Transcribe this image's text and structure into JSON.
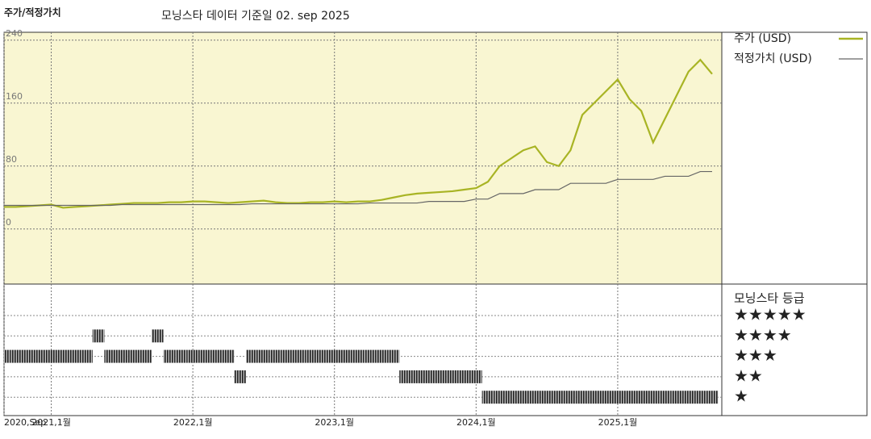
{
  "chart_data": [
    {
      "type": "line",
      "title": "주가/적정가치",
      "subtitle": "모닝스타 데이터 기준일 02. sep 2025",
      "x": [
        "2020-09",
        "2020-10",
        "2020-11",
        "2020-12",
        "2021-01",
        "2021-02",
        "2021-03",
        "2021-04",
        "2021-05",
        "2021-06",
        "2021-07",
        "2021-08",
        "2021-09",
        "2021-10",
        "2021-11",
        "2021-12",
        "2022-01",
        "2022-02",
        "2022-03",
        "2022-04",
        "2022-05",
        "2022-06",
        "2022-07",
        "2022-08",
        "2022-09",
        "2022-10",
        "2022-11",
        "2022-12",
        "2023-01",
        "2023-02",
        "2023-03",
        "2023-04",
        "2023-05",
        "2023-06",
        "2023-07",
        "2023-08",
        "2023-09",
        "2023-10",
        "2023-11",
        "2023-12",
        "2024-01",
        "2024-02",
        "2024-03",
        "2024-04",
        "2024-05",
        "2024-06",
        "2024-07",
        "2024-08",
        "2024-09",
        "2024-10",
        "2024-11",
        "2024-12",
        "2025-01",
        "2025-02",
        "2025-03",
        "2025-04",
        "2025-05",
        "2025-06",
        "2025-07",
        "2025-08",
        "2025-09"
      ],
      "series": [
        {
          "name": "주가 (USD)",
          "color": "#a8b424",
          "values": [
            28,
            28,
            29,
            30,
            31,
            27,
            28,
            29,
            30,
            31,
            32,
            33,
            33,
            33,
            34,
            34,
            35,
            35,
            34,
            33,
            34,
            35,
            36,
            34,
            33,
            33,
            34,
            34,
            35,
            34,
            35,
            35,
            37,
            40,
            43,
            45,
            46,
            47,
            48,
            50,
            52,
            60,
            80,
            90,
            100,
            105,
            85,
            80,
            100,
            145,
            160,
            175,
            190,
            165,
            150,
            110,
            140,
            170,
            200,
            215,
            197
          ]
        },
        {
          "name": "적정가치 (USD)",
          "color": "#666666",
          "values": [
            30,
            30,
            30,
            30,
            30,
            30,
            30,
            30,
            30,
            30,
            31,
            31,
            31,
            31,
            31,
            31,
            31,
            31,
            31,
            31,
            31,
            32,
            32,
            32,
            32,
            32,
            32,
            32,
            32,
            32,
            32,
            33,
            33,
            33,
            33,
            33,
            35,
            35,
            35,
            35,
            38,
            38,
            45,
            45,
            45,
            50,
            50,
            50,
            58,
            58,
            58,
            58,
            63,
            63,
            63,
            63,
            67,
            67,
            67,
            73,
            73
          ]
        }
      ],
      "xlim": [
        "2020-09",
        "2025-09"
      ],
      "xticks": [
        {
          "value": "2020-09",
          "label": "2020,Sep"
        },
        {
          "value": "2021-01",
          "label": "2021,1월"
        },
        {
          "value": "2022-01",
          "label": "2022,1월"
        },
        {
          "value": "2023-01",
          "label": "2023,1월"
        },
        {
          "value": "2024-01",
          "label": "2024,1월"
        },
        {
          "value": "2025-01",
          "label": "2025,1월"
        }
      ],
      "ylim": [
        -70,
        250
      ],
      "yticks": [
        0,
        80,
        160,
        240
      ],
      "grid": true
    },
    {
      "type": "rating-strip",
      "title": "모닝스타 등급",
      "levels": [
        "★★★★★",
        "★★★★",
        "★★★",
        "★★",
        "★"
      ],
      "values": [
        3,
        3,
        3,
        3,
        3,
        3,
        3,
        3,
        4,
        3,
        3,
        3,
        3,
        4,
        3,
        3,
        3,
        3,
        3,
        3,
        2,
        3,
        3,
        3,
        3,
        3,
        3,
        3,
        3,
        3,
        3,
        3,
        3,
        3,
        2,
        2,
        2,
        2,
        2,
        2,
        2,
        1,
        1,
        1,
        1,
        1,
        1,
        1,
        1,
        1,
        1,
        1,
        1,
        1,
        1,
        1,
        1,
        1,
        1,
        1,
        1
      ]
    }
  ]
}
